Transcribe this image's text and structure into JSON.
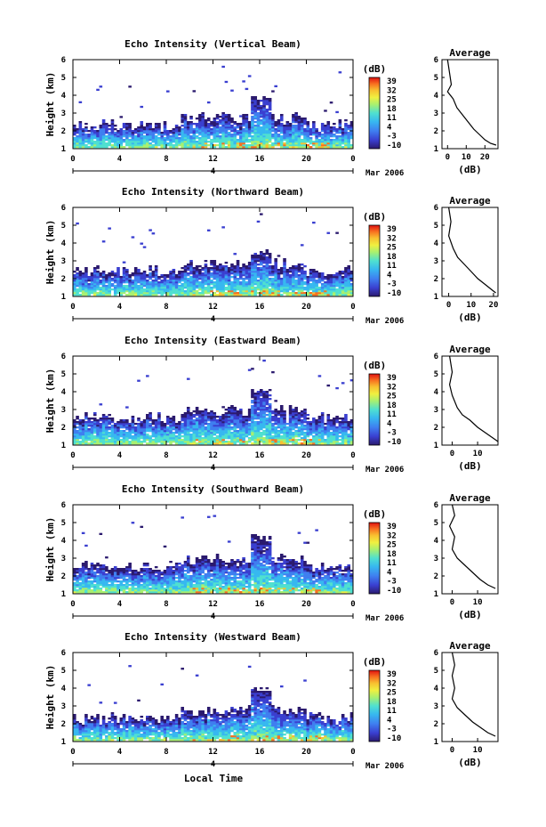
{
  "figure": {
    "date_label": "Mar 2006",
    "xlabel": "Local Time",
    "day_label": "4",
    "colorbar_title": "(dB)",
    "colorbar_ticks": [
      "39",
      "32",
      "25",
      "18",
      "11",
      "4",
      "-3",
      "-10"
    ],
    "avg_title": "Average",
    "avg_xlabel": "(dB)"
  },
  "chart_data": [
    {
      "type": "heatmap",
      "title": "Echo Intensity (Vertical Beam)",
      "xlabel": "",
      "ylabel": "Height (km)",
      "x_ticks": [
        "0",
        "4",
        "8",
        "12",
        "16",
        "20",
        "0"
      ],
      "xlim": [
        0,
        24
      ],
      "y_ticks": [
        "1",
        "2",
        "3",
        "4",
        "5",
        "6"
      ],
      "ylim": [
        1,
        6
      ],
      "colorbar_range": [
        -10,
        39
      ],
      "base_top_km": 2.3,
      "tower_x_hours": 16,
      "tower_top_km": 4.0,
      "avg_profile": {
        "xlabel": "(dB)",
        "x_ticks": [
          "0",
          "10",
          "20"
        ],
        "xlim": [
          -3,
          27
        ],
        "x": [
          0,
          1,
          2,
          0,
          3,
          5,
          8,
          11,
          14,
          17,
          20,
          23,
          26
        ],
        "y": [
          6,
          5.3,
          4.6,
          4.2,
          3.8,
          3.3,
          2.9,
          2.5,
          2.1,
          1.8,
          1.5,
          1.3,
          1.2
        ]
      }
    },
    {
      "type": "heatmap",
      "title": "Echo Intensity (Northward Beam)",
      "xlabel": "",
      "ylabel": "Height (km)",
      "x_ticks": [
        "0",
        "4",
        "8",
        "12",
        "16",
        "20",
        "0"
      ],
      "xlim": [
        0,
        24
      ],
      "y_ticks": [
        "1",
        "2",
        "3",
        "4",
        "5",
        "6"
      ],
      "ylim": [
        1,
        6
      ],
      "colorbar_range": [
        -10,
        39
      ],
      "base_top_km": 2.4,
      "tower_x_hours": 16,
      "tower_top_km": 3.6,
      "avg_profile": {
        "xlabel": "(dB)",
        "x_ticks": [
          "0",
          "10",
          "20"
        ],
        "xlim": [
          -3,
          22
        ],
        "x": [
          0,
          1,
          0,
          2,
          4,
          7,
          10,
          13,
          16,
          19,
          21
        ],
        "y": [
          6,
          5.2,
          4.4,
          3.7,
          3.2,
          2.8,
          2.4,
          2.0,
          1.7,
          1.4,
          1.2
        ]
      }
    },
    {
      "type": "heatmap",
      "title": "Echo Intensity (Eastward Beam)",
      "xlabel": "",
      "ylabel": "Height (km)",
      "x_ticks": [
        "0",
        "4",
        "8",
        "12",
        "16",
        "20",
        "0"
      ],
      "xlim": [
        0,
        24
      ],
      "y_ticks": [
        "1",
        "2",
        "3",
        "4",
        "5",
        "6"
      ],
      "ylim": [
        1,
        6
      ],
      "colorbar_range": [
        -10,
        39
      ],
      "base_top_km": 2.5,
      "tower_x_hours": 16,
      "tower_top_km": 4.2,
      "avg_profile": {
        "xlabel": "(dB)",
        "x_ticks": [
          "0",
          "10"
        ],
        "xlim": [
          -4,
          18
        ],
        "x": [
          -1,
          0,
          -1,
          0,
          2,
          4,
          7,
          10,
          13,
          16,
          18
        ],
        "y": [
          6,
          5.1,
          4.4,
          3.8,
          3.1,
          2.7,
          2.4,
          2.0,
          1.7,
          1.4,
          1.2
        ]
      }
    },
    {
      "type": "heatmap",
      "title": "Echo Intensity (Southward Beam)",
      "xlabel": "",
      "ylabel": "Height (km)",
      "x_ticks": [
        "0",
        "4",
        "8",
        "12",
        "16",
        "20",
        "0"
      ],
      "xlim": [
        0,
        24
      ],
      "y_ticks": [
        "1",
        "2",
        "3",
        "4",
        "5",
        "6"
      ],
      "ylim": [
        1,
        6
      ],
      "colorbar_range": [
        -10,
        39
      ],
      "base_top_km": 2.5,
      "tower_x_hours": 16,
      "tower_top_km": 4.3,
      "avg_profile": {
        "xlabel": "(dB)",
        "x_ticks": [
          "0",
          "10"
        ],
        "xlim": [
          -4,
          18
        ],
        "x": [
          0,
          1,
          -1,
          1,
          0,
          2,
          5,
          8,
          11,
          14,
          17
        ],
        "y": [
          6,
          5.4,
          4.8,
          4.2,
          3.5,
          3.0,
          2.6,
          2.2,
          1.8,
          1.5,
          1.3
        ]
      }
    },
    {
      "type": "heatmap",
      "title": "Echo Intensity (Westward Beam)",
      "xlabel": "Local Time",
      "ylabel": "Height (km)",
      "x_ticks": [
        "0",
        "4",
        "8",
        "12",
        "16",
        "20",
        "0"
      ],
      "xlim": [
        0,
        24
      ],
      "y_ticks": [
        "1",
        "2",
        "3",
        "4",
        "5",
        "6"
      ],
      "ylim": [
        1,
        6
      ],
      "colorbar_range": [
        -10,
        39
      ],
      "base_top_km": 2.3,
      "tower_x_hours": 16,
      "tower_top_km": 4.0,
      "avg_profile": {
        "xlabel": "(dB)",
        "x_ticks": [
          "0",
          "10"
        ],
        "xlim": [
          -4,
          18
        ],
        "x": [
          0,
          1,
          0,
          1,
          0,
          2,
          5,
          8,
          11,
          14,
          17
        ],
        "y": [
          6,
          5.3,
          4.7,
          4.0,
          3.4,
          2.9,
          2.5,
          2.1,
          1.8,
          1.5,
          1.3
        ]
      }
    }
  ]
}
